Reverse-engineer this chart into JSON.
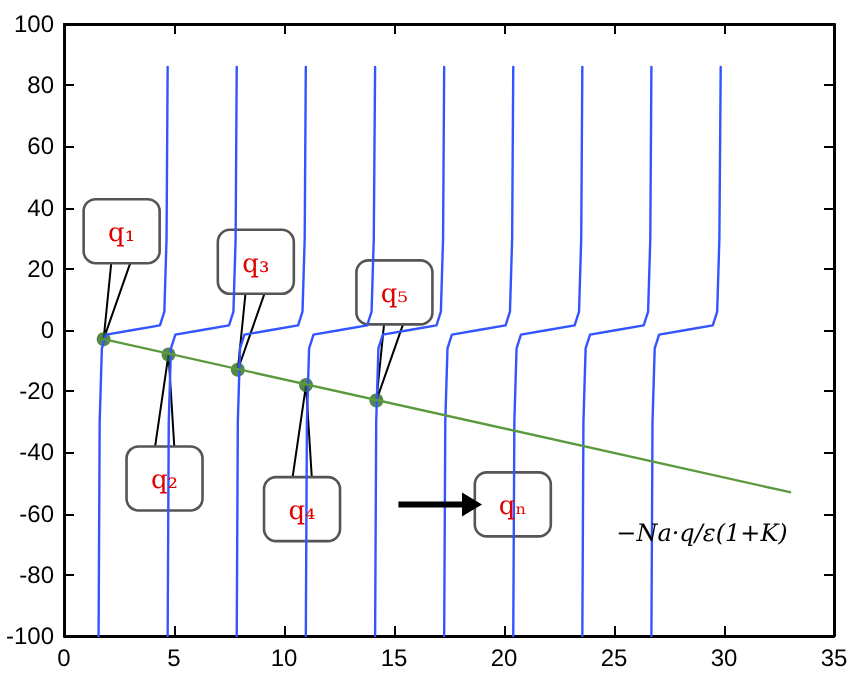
{
  "chart_data": {
    "type": "line",
    "xlim": [
      0,
      35
    ],
    "xticks": [
      0,
      5,
      10,
      15,
      20,
      25,
      30,
      35
    ],
    "ylim": [
      -100,
      100
    ],
    "yticks": [
      -100,
      -80,
      -60,
      -40,
      -20,
      0,
      20,
      40,
      60,
      80,
      100
    ],
    "grid": false,
    "marker": "none",
    "series": [
      {
        "color": "#3355ff",
        "x": [
          1.57,
          1.62,
          1.72,
          1.92,
          3.14,
          4.36,
          4.56,
          4.66,
          4.71
        ],
        "values": [
          -100,
          -30,
          -6,
          -1.5,
          0,
          1.5,
          6,
          30,
          86
        ]
      },
      {
        "color": "#3355ff",
        "x": [
          4.71,
          4.76,
          4.86,
          5.06,
          6.28,
          7.5,
          7.7,
          7.8,
          7.85
        ],
        "values": [
          -100,
          -30,
          -6,
          -1.5,
          0,
          1.5,
          6,
          30,
          86
        ]
      },
      {
        "color": "#3355ff",
        "x": [
          7.85,
          7.9,
          8.0,
          8.2,
          9.42,
          10.64,
          10.84,
          10.94,
          10.99
        ],
        "values": [
          -100,
          -30,
          -6,
          -1.5,
          0,
          1.5,
          6,
          30,
          86
        ]
      },
      {
        "color": "#3355ff",
        "x": [
          10.99,
          11.04,
          11.14,
          11.34,
          12.56,
          13.78,
          13.98,
          14.08,
          14.14
        ],
        "values": [
          -100,
          -30,
          -6,
          -1.5,
          0,
          1.5,
          6,
          30,
          86
        ]
      },
      {
        "color": "#3355ff",
        "x": [
          14.14,
          14.19,
          14.29,
          14.49,
          15.71,
          16.93,
          17.13,
          17.23,
          17.28
        ],
        "values": [
          -100,
          -30,
          -6,
          -1.5,
          0,
          1.5,
          6,
          30,
          86
        ]
      },
      {
        "color": "#3355ff",
        "x": [
          17.28,
          17.33,
          17.43,
          17.63,
          18.85,
          20.07,
          20.27,
          20.37,
          20.42
        ],
        "values": [
          -100,
          -30,
          -6,
          -1.5,
          0,
          1.5,
          6,
          30,
          86
        ]
      },
      {
        "color": "#3355ff",
        "x": [
          20.42,
          20.47,
          20.57,
          20.77,
          21.99,
          23.21,
          23.41,
          23.51,
          23.56
        ],
        "values": [
          -100,
          -30,
          -6,
          -1.5,
          0,
          1.5,
          6,
          30,
          86
        ]
      },
      {
        "color": "#3355ff",
        "x": [
          23.56,
          23.61,
          23.71,
          23.91,
          25.13,
          26.35,
          26.55,
          26.65,
          26.7
        ],
        "values": [
          -100,
          -30,
          -6,
          -1.5,
          0,
          1.5,
          6,
          30,
          86
        ]
      },
      {
        "color": "#3355ff",
        "x": [
          26.7,
          26.75,
          26.85,
          27.05,
          28.27,
          29.49,
          29.69,
          29.79,
          29.85
        ],
        "values": [
          -100,
          -30,
          -6,
          -1.5,
          0,
          1.5,
          6,
          30,
          86
        ]
      },
      {
        "color": "#5b9a3c",
        "x": [
          1.8,
          33
        ],
        "values": [
          -3,
          -53
        ]
      },
      {
        "type": "scatter",
        "marker": "circle",
        "color": "#2d6a1e",
        "x": [
          1.8,
          4.75,
          7.9,
          11.0,
          14.2
        ],
        "values": [
          -3,
          -8,
          -13,
          -18,
          -23
        ]
      }
    ],
    "annotations": [
      {
        "text": "q₁",
        "x": 1.8,
        "y": -3
      },
      {
        "text": "q₂",
        "x": 4.75,
        "y": -8
      },
      {
        "text": "q₃",
        "x": 7.9,
        "y": -13
      },
      {
        "text": "q₄",
        "x": 11.0,
        "y": -18
      },
      {
        "text": "q₅",
        "x": 14.2,
        "y": -23
      },
      "qₙ",
      "−Na·q/ε(1+K)"
    ]
  }
}
